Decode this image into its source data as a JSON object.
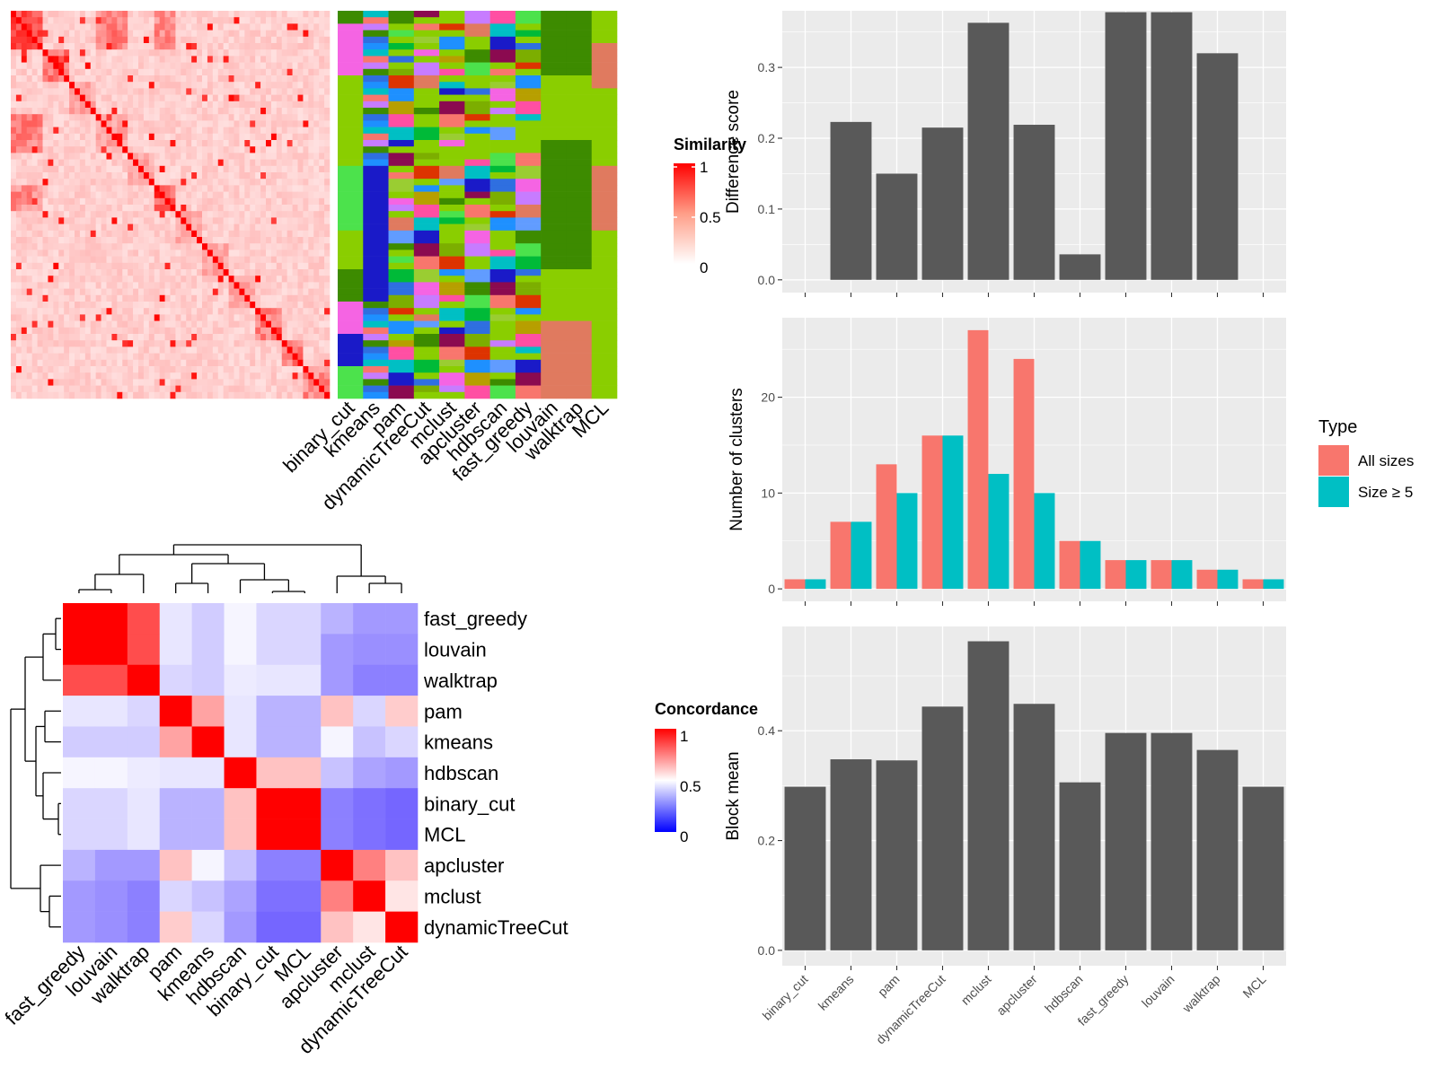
{
  "methods": [
    "binary_cut",
    "kmeans",
    "pam",
    "dynamicTreeCut",
    "mclust",
    "apcluster",
    "hdbscan",
    "fast_greedy",
    "louvain",
    "walktrap",
    "MCL"
  ],
  "similarity_legend": {
    "title": "Similarity",
    "ticks": [
      "1",
      "0.5",
      "0"
    ]
  },
  "concordance_legend": {
    "title": "Concordance",
    "ticks": [
      "1",
      "0.5",
      "0"
    ]
  },
  "type_legend": {
    "title": "Type",
    "items": [
      "All sizes",
      "Size ≥ 5"
    ]
  },
  "colors": {
    "all_sizes": "#F8766D",
    "size5": "#00BFC4",
    "bar_gray": "#595959",
    "panel_bg": "#EBEBEB",
    "heat_red": "#FF0000"
  },
  "chart_data": [
    {
      "type": "heatmap",
      "title": "",
      "legend_title": "Similarity",
      "note": "term-by-term similarity matrix, values 0 to 1"
    },
    {
      "type": "heatmap",
      "title": "",
      "columns": [
        "binary_cut",
        "kmeans",
        "pam",
        "dynamicTreeCut",
        "mclust",
        "apcluster",
        "hdbscan",
        "fast_greedy",
        "louvain",
        "walktrap",
        "MCL"
      ],
      "note": "cluster assignment per method, categorical colors"
    },
    {
      "type": "heatmap",
      "title": "",
      "legend_title": "Concordance",
      "rows": [
        "fast_greedy",
        "louvain",
        "walktrap",
        "pam",
        "kmeans",
        "hdbscan",
        "binary_cut",
        "MCL",
        "apcluster",
        "mclust",
        "dynamicTreeCut"
      ],
      "columns": [
        "fast_greedy",
        "louvain",
        "walktrap",
        "pam",
        "kmeans",
        "hdbscan",
        "binary_cut",
        "MCL",
        "apcluster",
        "mclust",
        "dynamicTreeCut"
      ],
      "values": [
        [
          1.0,
          1.0,
          0.85,
          0.45,
          0.4,
          0.48,
          0.42,
          0.42,
          0.35,
          0.3,
          0.3
        ],
        [
          1.0,
          1.0,
          0.85,
          0.45,
          0.4,
          0.48,
          0.42,
          0.42,
          0.3,
          0.28,
          0.28
        ],
        [
          0.85,
          0.85,
          1.0,
          0.42,
          0.4,
          0.46,
          0.45,
          0.45,
          0.3,
          0.25,
          0.25
        ],
        [
          0.45,
          0.45,
          0.42,
          1.0,
          0.68,
          0.45,
          0.35,
          0.35,
          0.62,
          0.42,
          0.6
        ],
        [
          0.4,
          0.4,
          0.4,
          0.68,
          1.0,
          0.45,
          0.35,
          0.35,
          0.48,
          0.38,
          0.42
        ],
        [
          0.48,
          0.48,
          0.46,
          0.45,
          0.45,
          1.0,
          0.62,
          0.62,
          0.38,
          0.32,
          0.3
        ],
        [
          0.42,
          0.42,
          0.45,
          0.35,
          0.35,
          0.62,
          1.0,
          1.0,
          0.25,
          0.22,
          0.2
        ],
        [
          0.42,
          0.42,
          0.45,
          0.35,
          0.35,
          0.62,
          1.0,
          1.0,
          0.25,
          0.22,
          0.2
        ],
        [
          0.35,
          0.3,
          0.3,
          0.62,
          0.48,
          0.38,
          0.25,
          0.25,
          1.0,
          0.75,
          0.62
        ],
        [
          0.3,
          0.28,
          0.25,
          0.42,
          0.38,
          0.32,
          0.22,
          0.22,
          0.75,
          1.0,
          0.55
        ],
        [
          0.3,
          0.28,
          0.25,
          0.6,
          0.42,
          0.3,
          0.2,
          0.2,
          0.62,
          0.55,
          1.0
        ]
      ]
    },
    {
      "type": "bar",
      "categories": [
        "binary_cut",
        "kmeans",
        "pam",
        "dynamicTreeCut",
        "mclust",
        "apcluster",
        "hdbscan",
        "fast_greedy",
        "louvain",
        "walktrap",
        "MCL"
      ],
      "values": [
        0,
        0.223,
        0.15,
        0.215,
        0.363,
        0.219,
        0.036,
        0.378,
        0.378,
        0.32,
        0
      ],
      "xlabel": "",
      "ylabel": "Difference score",
      "ylim": [
        -0.018,
        0.38
      ],
      "yticks": [
        0.0,
        0.1,
        0.2,
        0.3
      ]
    },
    {
      "type": "bar",
      "categories": [
        "binary_cut",
        "kmeans",
        "pam",
        "dynamicTreeCut",
        "mclust",
        "apcluster",
        "hdbscan",
        "fast_greedy",
        "louvain",
        "walktrap",
        "MCL"
      ],
      "series": [
        {
          "name": "All sizes",
          "values": [
            1,
            7,
            13,
            16,
            27,
            24,
            5,
            3,
            3,
            2,
            1
          ]
        },
        {
          "name": "Size ≥ 5",
          "values": [
            1,
            7,
            10,
            16,
            12,
            10,
            5,
            3,
            3,
            2,
            1
          ]
        }
      ],
      "xlabel": "",
      "ylabel": "Number of clusters",
      "ylim": [
        -1.3,
        28.3
      ],
      "yticks": [
        0,
        10,
        20
      ]
    },
    {
      "type": "bar",
      "categories": [
        "binary_cut",
        "kmeans",
        "pam",
        "dynamicTreeCut",
        "mclust",
        "apcluster",
        "hdbscan",
        "fast_greedy",
        "louvain",
        "walktrap",
        "MCL"
      ],
      "values": [
        0.298,
        0.348,
        0.346,
        0.444,
        0.563,
        0.449,
        0.306,
        0.396,
        0.396,
        0.365,
        0.298
      ],
      "xlabel": "",
      "ylabel": "Block mean",
      "ylim": [
        -0.028,
        0.59
      ],
      "yticks": [
        0.0,
        0.2,
        0.4
      ]
    }
  ]
}
